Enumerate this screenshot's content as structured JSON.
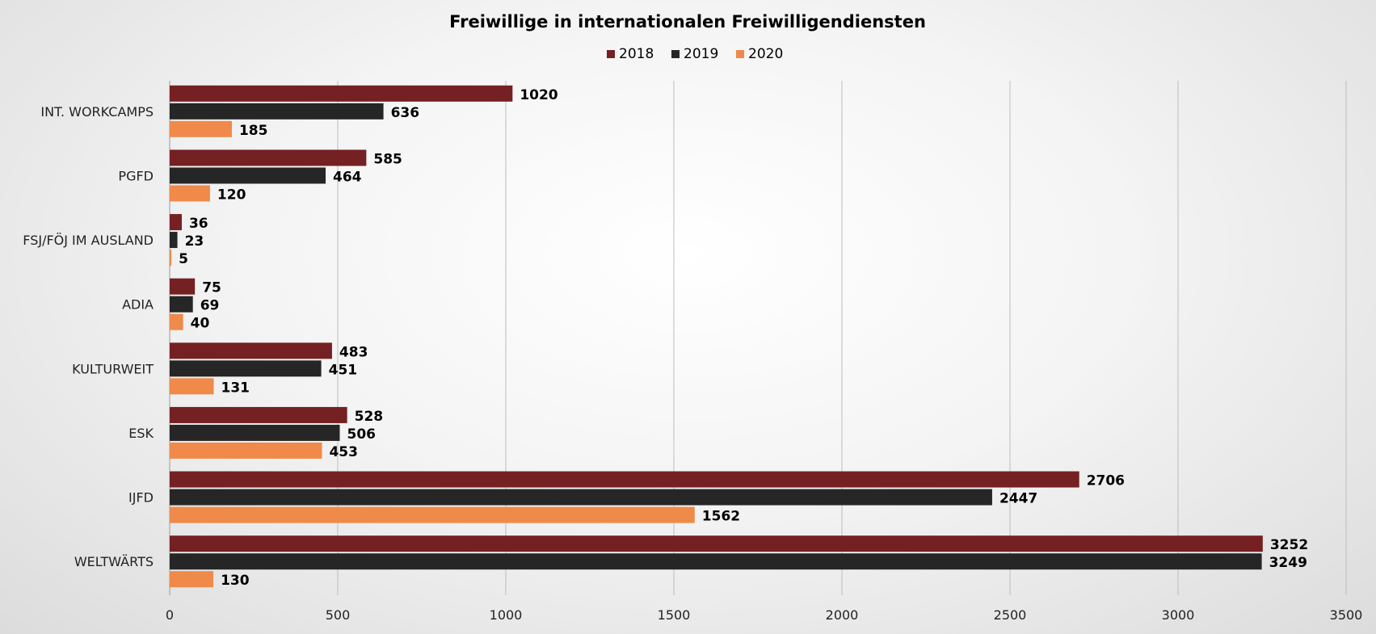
{
  "chart_data": {
    "type": "bar",
    "orientation": "horizontal",
    "title": "Freiwillige in internationalen Freiwilligendiensten",
    "categories": [
      "INT. WORKCAMPS",
      "PGFD",
      "FSJ/FÖJ IM AUSLAND",
      "ADIA",
      "KULTURWEIT",
      "ESK",
      "IJFD",
      "WELTWÄRTS"
    ],
    "series": [
      {
        "name": "2018",
        "color": "#752022",
        "values": [
          1020,
          585,
          36,
          75,
          483,
          528,
          2706,
          3252
        ]
      },
      {
        "name": "2019",
        "color": "#262626",
        "values": [
          636,
          464,
          23,
          69,
          451,
          506,
          2447,
          3249
        ]
      },
      {
        "name": "2020",
        "color": "#ef8a4a",
        "values": [
          185,
          120,
          5,
          40,
          131,
          453,
          1562,
          130
        ]
      }
    ],
    "xlim": [
      0,
      3500
    ],
    "xticks": [
      0,
      500,
      1000,
      1500,
      2000,
      2500,
      3000,
      3500
    ],
    "grid": true,
    "legend": "top-center",
    "data_labels": true
  }
}
